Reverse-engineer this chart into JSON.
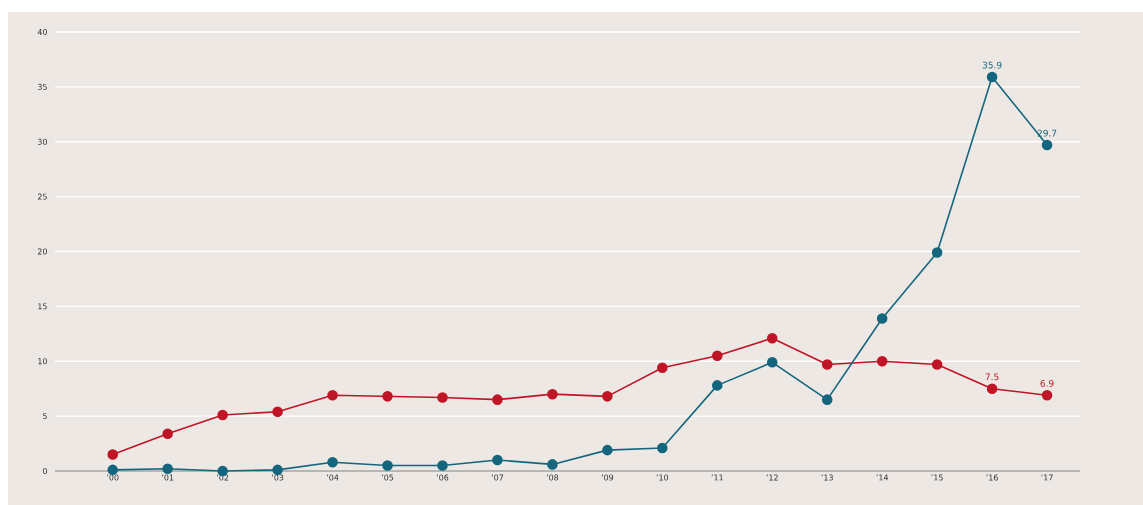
{
  "chart_data": {
    "type": "line",
    "categories": [
      "’00",
      "’01",
      "’02",
      "’03",
      "’04",
      "’05",
      "’06",
      "’07",
      "’08",
      "’09",
      "’10",
      "’11",
      "’12",
      "’13",
      "’14",
      "’15",
      "’16",
      "’17"
    ],
    "series": [
      {
        "color": "#c01526",
        "values": [
          1.5,
          3.4,
          5.1,
          5.4,
          6.9,
          6.8,
          6.7,
          6.5,
          7.0,
          6.8,
          9.4,
          10.5,
          12.1,
          9.7,
          10.0,
          9.7,
          7.5,
          6.9
        ],
        "value_labels": [
          null,
          null,
          null,
          null,
          null,
          null,
          null,
          null,
          null,
          null,
          null,
          null,
          null,
          null,
          null,
          null,
          "7.5",
          "6.9"
        ]
      },
      {
        "color": "#14667e",
        "values": [
          0.1,
          0.2,
          0.0,
          0.1,
          0.8,
          0.5,
          0.5,
          1.0,
          0.6,
          1.9,
          2.1,
          7.8,
          9.9,
          6.5,
          13.9,
          19.9,
          35.9,
          29.7
        ],
        "value_labels": [
          null,
          null,
          null,
          null,
          null,
          null,
          null,
          null,
          null,
          null,
          null,
          null,
          null,
          null,
          null,
          null,
          "35.9",
          "29.7"
        ]
      }
    ],
    "ylim": [
      0,
      40
    ],
    "yticks": [
      0,
      5,
      10,
      15,
      20,
      25,
      30,
      35,
      40
    ],
    "grid": "y",
    "marker": "circle",
    "line_style": "solid"
  }
}
